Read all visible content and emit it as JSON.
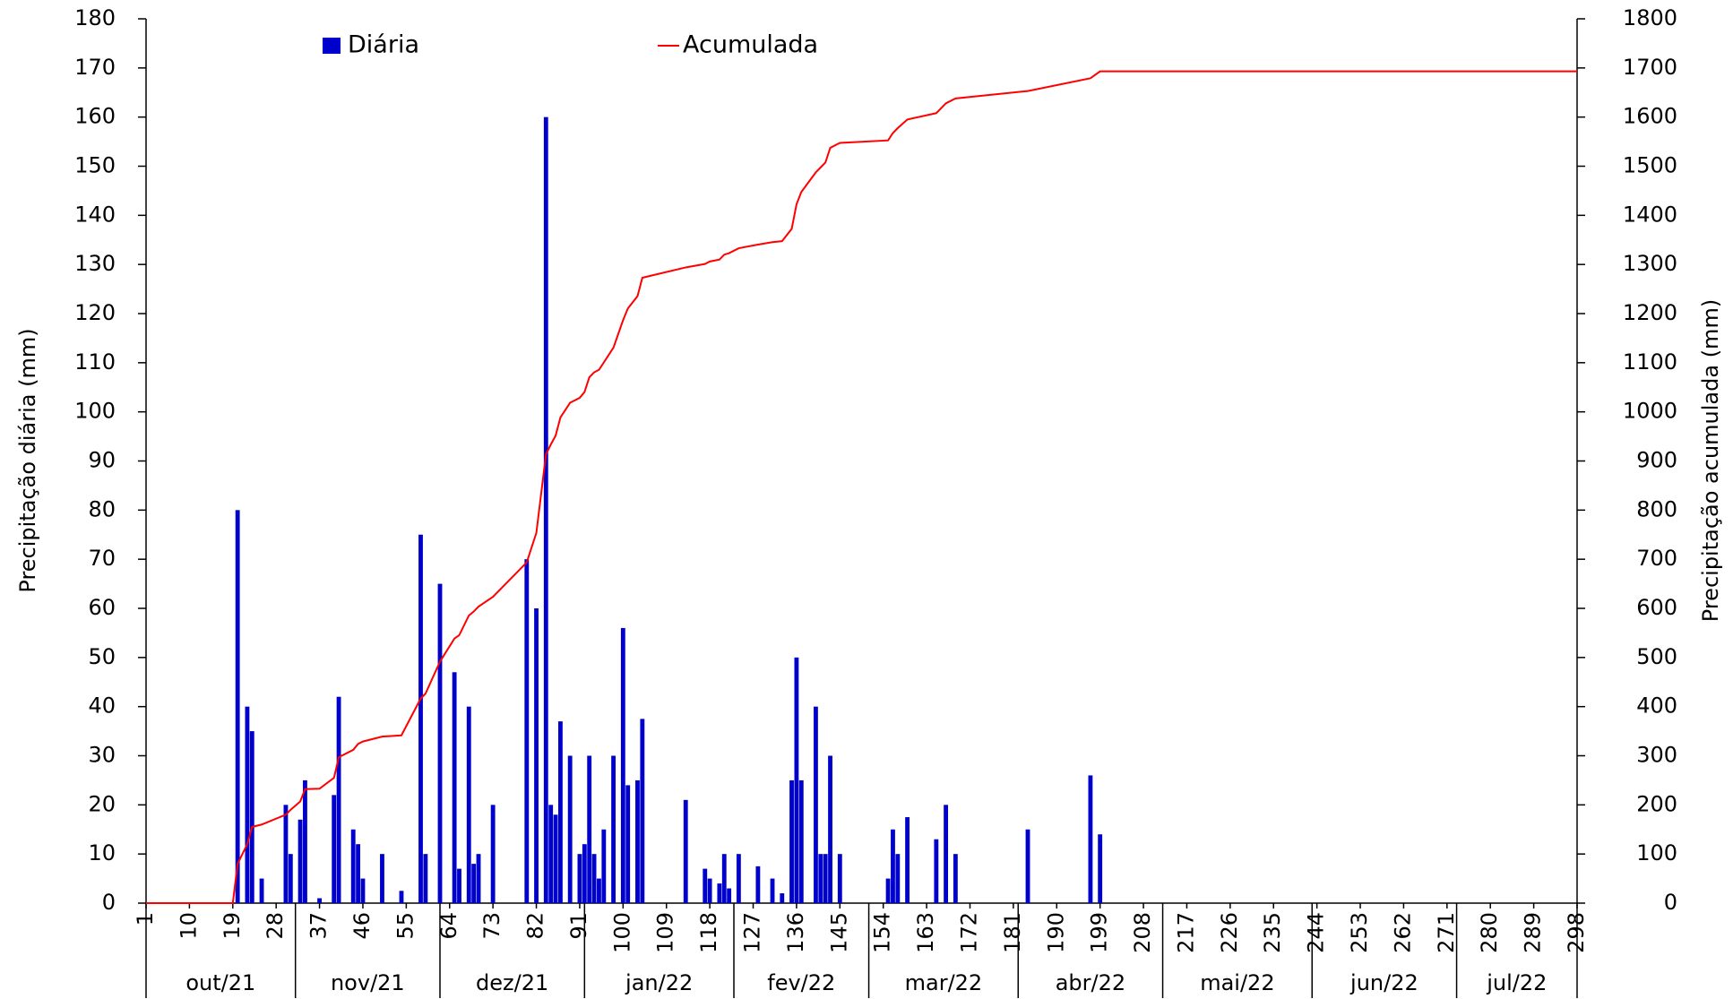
{
  "chart_data": {
    "type": "bar_line",
    "ylabel": "Precipitação diária (mm)",
    "y2label": "Precipitação acumulada (mm)",
    "ylim": [
      0,
      180
    ],
    "yticks": [
      0,
      10,
      20,
      30,
      40,
      50,
      60,
      70,
      80,
      90,
      100,
      110,
      120,
      130,
      140,
      150,
      160,
      170,
      180
    ],
    "y2lim": [
      0,
      1800
    ],
    "y2ticks": [
      0,
      100,
      200,
      300,
      400,
      500,
      600,
      700,
      800,
      900,
      1000,
      1100,
      1200,
      1300,
      1400,
      1500,
      1600,
      1700,
      1800
    ],
    "xlim": [
      1,
      298
    ],
    "xticks": [
      1,
      10,
      19,
      28,
      37,
      46,
      55,
      64,
      73,
      82,
      91,
      100,
      109,
      118,
      127,
      136,
      145,
      154,
      163,
      172,
      181,
      190,
      199,
      208,
      217,
      226,
      235,
      244,
      253,
      262,
      271,
      280,
      289,
      298
    ],
    "months": {
      "labels": [
        "out/21",
        "nov/21",
        "dez/21",
        "jan/22",
        "fev/22",
        "mar/22",
        "abr/22",
        "mai/22",
        "jun/22",
        "jul/22"
      ],
      "bounds": [
        1,
        32,
        62,
        92,
        123,
        151,
        182,
        212,
        243,
        273,
        298
      ]
    },
    "grid": false,
    "series": [
      {
        "name": "Diária",
        "color": "#0000cc",
        "kind": "bar",
        "x": [
          20,
          22,
          23,
          25,
          30,
          31,
          33,
          34,
          37,
          40,
          41,
          44,
          45,
          46,
          50,
          54,
          58,
          59,
          62,
          65,
          66,
          68,
          69,
          70,
          73,
          80,
          82,
          84,
          85,
          86,
          87,
          89,
          91,
          92,
          93,
          94,
          95,
          96,
          98,
          100,
          101,
          103,
          104,
          113,
          117,
          118,
          120,
          121,
          122,
          124,
          128,
          131,
          133,
          135,
          136,
          137,
          140,
          141,
          142,
          143,
          145,
          155,
          156,
          157,
          159,
          165,
          167,
          169,
          184,
          197,
          199
        ],
        "values": [
          80,
          40,
          35,
          5,
          20,
          10,
          17,
          25,
          1,
          22,
          42,
          15,
          12,
          5,
          10,
          2.5,
          75,
          10,
          65,
          47,
          7,
          40,
          8,
          10,
          20,
          70,
          60,
          160,
          20,
          18,
          37,
          30,
          10,
          12,
          30,
          10,
          5,
          15,
          30,
          56,
          24,
          25,
          37.5,
          21,
          7,
          5,
          4,
          10,
          3,
          10,
          7.5,
          5,
          2,
          25,
          50,
          25,
          40,
          10,
          10,
          30,
          10,
          5,
          15,
          10,
          17.5,
          13,
          20,
          10,
          15,
          26,
          14
        ]
      },
      {
        "name": "Acumulada",
        "color": "#ff0000",
        "kind": "line",
        "axis": "y2",
        "x": [
          1,
          19,
          20,
          22,
          23,
          25,
          30,
          31,
          33,
          34,
          37,
          40,
          41,
          44,
          45,
          46,
          50,
          54,
          58,
          59,
          62,
          65,
          66,
          68,
          69,
          70,
          73,
          80,
          82,
          84,
          85,
          86,
          87,
          89,
          91,
          92,
          93,
          94,
          95,
          96,
          98,
          100,
          101,
          103,
          104,
          113,
          117,
          118,
          120,
          121,
          122,
          124,
          128,
          131,
          133,
          135,
          136,
          137,
          140,
          141,
          142,
          143,
          145,
          155,
          156,
          157,
          159,
          165,
          167,
          169,
          184,
          197,
          199,
          298
        ],
        "values": [
          0,
          0,
          80,
          120,
          155,
          160,
          180,
          190,
          207,
          232,
          233,
          255,
          297,
          312,
          324,
          329,
          339,
          341.5,
          416.5,
          426.5,
          491.5,
          538.5,
          545.5,
          585.5,
          593.5,
          603.5,
          623.5,
          693.5,
          753.5,
          913.5,
          933.5,
          951.5,
          988.5,
          1018.5,
          1028.5,
          1040.5,
          1070.5,
          1080.5,
          1085.5,
          1100.5,
          1130.5,
          1186.5,
          1210.5,
          1235.5,
          1273,
          1294,
          1301,
          1306,
          1310,
          1320,
          1323,
          1333,
          1340.5,
          1345.5,
          1347.5,
          1372.5,
          1422.5,
          1447.5,
          1487.5,
          1497.5,
          1507.5,
          1537.5,
          1547.5,
          1552.5,
          1567.5,
          1577.5,
          1595,
          1608,
          1628,
          1638,
          1653,
          1679,
          1693,
          1693
        ]
      }
    ]
  }
}
